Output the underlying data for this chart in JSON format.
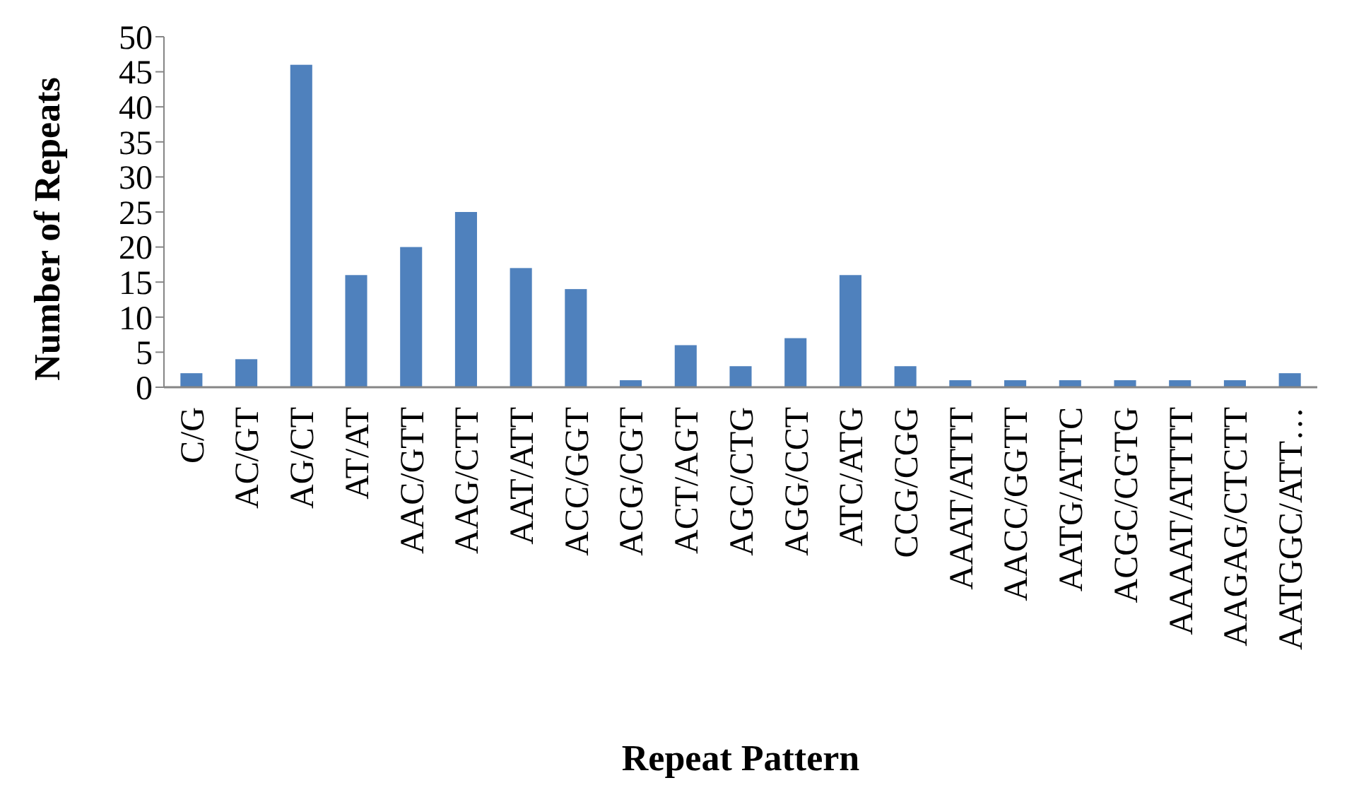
{
  "chart_data": {
    "type": "bar",
    "xlabel": "Repeat Pattern",
    "ylabel": "Number of Repeats",
    "categories": [
      "C/G",
      "AC/GT",
      "AG/CT",
      "AT/AT",
      "AAC/GTT",
      "AAG/CTT",
      "AAT/ATT",
      "ACC/GGT",
      "ACG/CGT",
      "ACT/AGT",
      "AGC/CTG",
      "AGG/CCT",
      "ATC/ATG",
      "CCG/CGG",
      "AAAT/ATTT",
      "AACC/GGTT",
      "AATG/ATTC",
      "ACGC/CGTG",
      "AAAAT/ATTTT",
      "AAGAG/CTCTT",
      "AATGGC/ATT…"
    ],
    "values": [
      2,
      4,
      46,
      16,
      20,
      25,
      17,
      14,
      1,
      6,
      3,
      7,
      16,
      3,
      1,
      1,
      1,
      1,
      1,
      1,
      2
    ],
    "color": "#4f81bd",
    "ylim": [
      0,
      50
    ],
    "yticks": [
      0,
      5,
      10,
      15,
      20,
      25,
      30,
      35,
      40,
      45,
      50
    ],
    "grid": false
  }
}
